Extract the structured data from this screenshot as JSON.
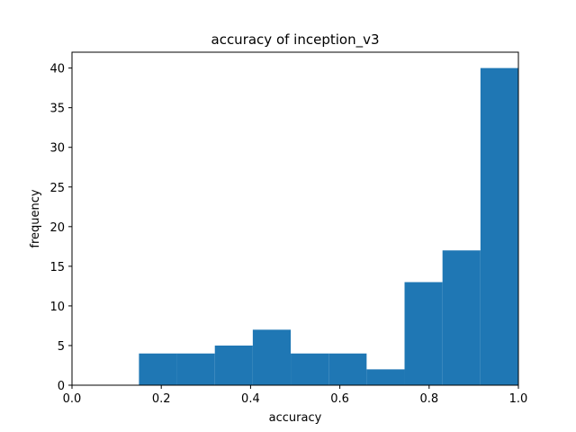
{
  "chart_data": {
    "type": "bar",
    "title": "accuracy of inception_v3",
    "xlabel": "accuracy",
    "ylabel": "frequency",
    "xlim": [
      0.0,
      1.0
    ],
    "ylim": [
      0,
      42
    ],
    "xticks": [
      "0.0",
      "0.2",
      "0.4",
      "0.6",
      "0.8",
      "1.0"
    ],
    "yticks": [
      "0",
      "5",
      "10",
      "15",
      "20",
      "25",
      "30",
      "35",
      "40"
    ],
    "bin_edges": [
      0.15,
      0.235,
      0.32,
      0.405,
      0.49,
      0.575,
      0.66,
      0.745,
      0.83,
      0.915,
      1.0
    ],
    "values": [
      4,
      4,
      5,
      7,
      4,
      4,
      2,
      13,
      17,
      40
    ],
    "bar_color": "#1f77b4",
    "grid": false,
    "legend": "none"
  }
}
